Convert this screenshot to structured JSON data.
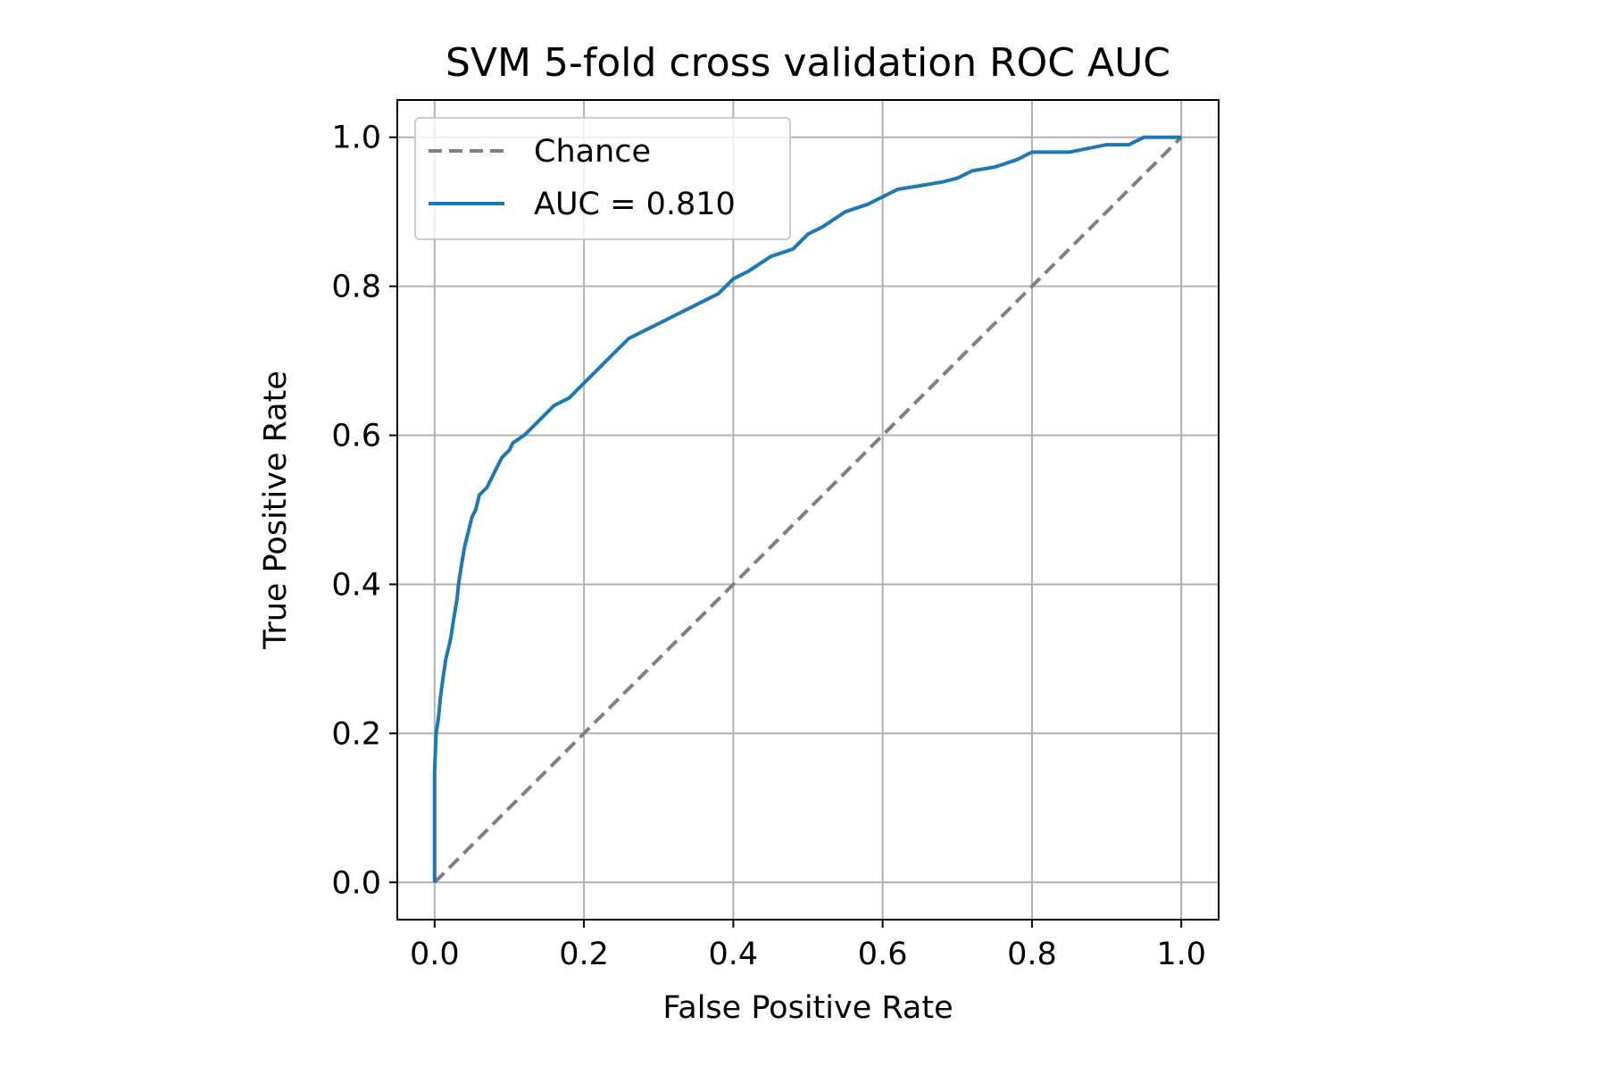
{
  "chart_data": {
    "type": "line",
    "title": "SVM 5-fold cross validation ROC AUC",
    "xlabel": "False Positive Rate",
    "ylabel": "True Positive Rate",
    "xlim": [
      -0.05,
      1.05
    ],
    "ylim": [
      -0.05,
      1.05
    ],
    "xticks": [
      "0.0",
      "0.2",
      "0.4",
      "0.6",
      "0.8",
      "1.0"
    ],
    "yticks": [
      "0.0",
      "0.2",
      "0.4",
      "0.6",
      "0.8",
      "1.0"
    ],
    "grid": true,
    "legend_position": "top-left",
    "series": [
      {
        "name": "Chance",
        "style": "dashed",
        "color": "#808080",
        "x": [
          0.0,
          1.0
        ],
        "y": [
          0.0,
          1.0
        ]
      },
      {
        "name": "AUC = 0.810",
        "style": "solid",
        "color": "#1f77b4",
        "x": [
          0.0,
          0.0,
          0.002,
          0.005,
          0.008,
          0.012,
          0.015,
          0.02,
          0.022,
          0.025,
          0.03,
          0.032,
          0.035,
          0.04,
          0.045,
          0.05,
          0.055,
          0.06,
          0.07,
          0.08,
          0.09,
          0.1,
          0.105,
          0.12,
          0.14,
          0.16,
          0.18,
          0.2,
          0.22,
          0.24,
          0.26,
          0.28,
          0.3,
          0.32,
          0.34,
          0.36,
          0.38,
          0.4,
          0.42,
          0.45,
          0.48,
          0.5,
          0.52,
          0.55,
          0.58,
          0.6,
          0.62,
          0.65,
          0.68,
          0.7,
          0.72,
          0.75,
          0.78,
          0.8,
          0.85,
          0.9,
          0.93,
          0.95,
          0.97,
          1.0
        ],
        "y": [
          0.0,
          0.15,
          0.2,
          0.22,
          0.25,
          0.28,
          0.3,
          0.32,
          0.33,
          0.35,
          0.38,
          0.4,
          0.42,
          0.45,
          0.47,
          0.49,
          0.5,
          0.52,
          0.53,
          0.55,
          0.57,
          0.58,
          0.59,
          0.6,
          0.62,
          0.64,
          0.65,
          0.67,
          0.69,
          0.71,
          0.73,
          0.74,
          0.75,
          0.76,
          0.77,
          0.78,
          0.79,
          0.81,
          0.82,
          0.84,
          0.85,
          0.87,
          0.88,
          0.9,
          0.91,
          0.92,
          0.93,
          0.935,
          0.94,
          0.945,
          0.955,
          0.96,
          0.97,
          0.98,
          0.98,
          0.99,
          0.99,
          1.0,
          1.0,
          1.0
        ]
      }
    ]
  }
}
